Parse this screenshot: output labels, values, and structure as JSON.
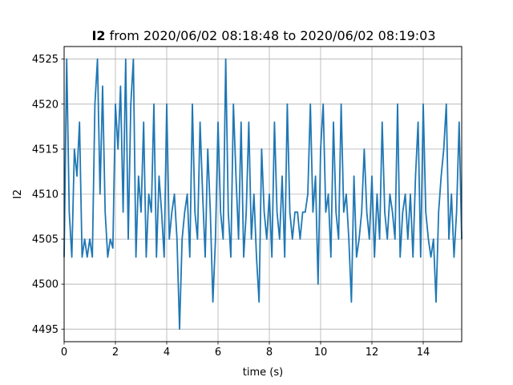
{
  "chart_data": {
    "type": "line",
    "title_bold": "I2",
    "title_rest": " from 2020/06/02 08:18:48 to 2020/06/02 08:19:03",
    "xlabel": "time (s)",
    "ylabel": "I2",
    "xlim": [
      0,
      15.5
    ],
    "ylim": [
      4493.6,
      4526.4
    ],
    "xticks": [
      0,
      2,
      4,
      6,
      8,
      10,
      12,
      14
    ],
    "yticks": [
      4495,
      4500,
      4505,
      4510,
      4515,
      4520,
      4525
    ],
    "grid": true,
    "series": [
      {
        "color": "#1f77b4",
        "x": [
          0,
          0.1,
          0.2,
          0.3,
          0.4,
          0.5,
          0.6,
          0.7,
          0.8,
          0.9,
          1.0,
          1.1,
          1.2,
          1.3,
          1.4,
          1.5,
          1.6,
          1.7,
          1.8,
          1.9,
          2.0,
          2.1,
          2.2,
          2.3,
          2.4,
          2.5,
          2.6,
          2.7,
          2.8,
          2.9,
          3.0,
          3.1,
          3.2,
          3.3,
          3.4,
          3.5,
          3.6,
          3.7,
          3.8,
          3.9,
          4.0,
          4.1,
          4.2,
          4.3,
          4.4,
          4.5,
          4.6,
          4.7,
          4.8,
          4.9,
          5.0,
          5.1,
          5.2,
          5.3,
          5.4,
          5.5,
          5.6,
          5.7,
          5.8,
          5.9,
          6.0,
          6.1,
          6.2,
          6.3,
          6.4,
          6.5,
          6.6,
          6.7,
          6.8,
          6.9,
          7.0,
          7.1,
          7.2,
          7.3,
          7.4,
          7.5,
          7.6,
          7.7,
          7.8,
          7.9,
          8.0,
          8.1,
          8.2,
          8.3,
          8.4,
          8.5,
          8.6,
          8.7,
          8.8,
          8.9,
          9.0,
          9.1,
          9.2,
          9.3,
          9.4,
          9.5,
          9.6,
          9.7,
          9.8,
          9.9,
          10.0,
          10.1,
          10.2,
          10.3,
          10.4,
          10.5,
          10.6,
          10.7,
          10.8,
          10.9,
          11.0,
          11.1,
          11.2,
          11.3,
          11.4,
          11.5,
          11.6,
          11.7,
          11.8,
          11.9,
          12.0,
          12.1,
          12.2,
          12.3,
          12.4,
          12.5,
          12.6,
          12.7,
          12.8,
          12.9,
          13.0,
          13.1,
          13.2,
          13.3,
          13.4,
          13.5,
          13.6,
          13.7,
          13.8,
          13.9,
          14.0,
          14.1,
          14.2,
          14.3,
          14.4,
          14.5,
          14.6,
          14.7,
          14.8,
          14.9,
          15.0,
          15.1,
          15.2,
          15.3,
          15.4,
          15.5
        ],
        "values": [
          4503,
          4525,
          4508,
          4503,
          4515,
          4512,
          4518,
          4503,
          4505,
          4503,
          4505,
          4503,
          4520,
          4525,
          4510,
          4522,
          4508,
          4503,
          4505,
          4504,
          4520,
          4515,
          4522,
          4508,
          4525,
          4505,
          4520,
          4525,
          4503,
          4512,
          4508,
          4518,
          4503,
          4510,
          4508,
          4520,
          4503,
          4512,
          4508,
          4503,
          4520,
          4505,
          4508,
          4510,
          4505,
          4495,
          4505,
          4508,
          4510,
          4503,
          4520,
          4508,
          4505,
          4518,
          4510,
          4503,
          4515,
          4508,
          4498,
          4505,
          4518,
          4508,
          4505,
          4525,
          4508,
          4503,
          4520,
          4512,
          4505,
          4518,
          4503,
          4508,
          4518,
          4505,
          4510,
          4503,
          4498,
          4515,
          4508,
          4505,
          4510,
          4503,
          4518,
          4508,
          4505,
          4512,
          4503,
          4520,
          4508,
          4505,
          4508,
          4508,
          4505,
          4508,
          4508,
          4510,
          4520,
          4508,
          4512,
          4500,
          4515,
          4520,
          4508,
          4510,
          4503,
          4518,
          4508,
          4505,
          4520,
          4508,
          4510,
          4505,
          4498,
          4512,
          4503,
          4505,
          4508,
          4515,
          4508,
          4505,
          4512,
          4503,
          4510,
          4505,
          4518,
          4508,
          4505,
          4510,
          4508,
          4505,
          4520,
          4503,
          4508,
          4510,
          4505,
          4510,
          4503,
          4512,
          4518,
          4503,
          4520,
          4508,
          4505,
          4503,
          4505,
          4498,
          4508,
          4512,
          4515,
          4520,
          4505,
          4510,
          4503,
          4508,
          4518,
          4505
        ]
      }
    ]
  }
}
